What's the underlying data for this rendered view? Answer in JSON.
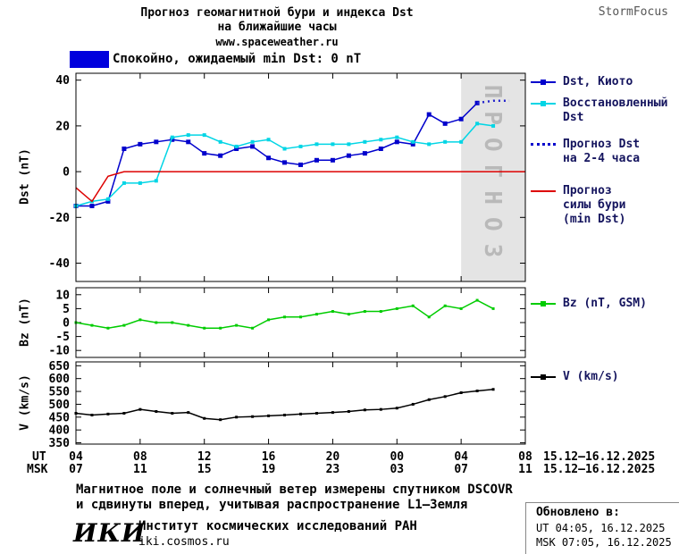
{
  "header": {
    "title_line1": "Прогноз геомагнитной бури и индекса Dst",
    "title_line2": "на ближайшие часы",
    "url": "www.spaceweather.ru",
    "brand": "StormFocus"
  },
  "status_banner": {
    "label": "Спокойно, ожидаемый min Dst: 0 nT",
    "color": "#0000dd"
  },
  "legend": {
    "dst_kyoto": "Dst, Киото",
    "restored_line1": "Восстановленный",
    "restored_line2": "Dst",
    "forecast_line1": "Прогноз Dst",
    "forecast_line2": "на 2-4 часа",
    "storm_line1": "Прогноз",
    "storm_line2": "силы бури",
    "storm_line3": "(min Dst)",
    "bz": "Bz (nT, GSM)",
    "v": "V (km/s)"
  },
  "axes": {
    "dst_label": "Dst (nT)",
    "bz_label": "Bz (nT)",
    "v_label": "V (km/s)",
    "ut_label": "UT",
    "msk_label": "MSK",
    "ut_ticks": [
      "04",
      "08",
      "12",
      "16",
      "20",
      "00",
      "04",
      "08"
    ],
    "msk_ticks": [
      "07",
      "11",
      "15",
      "19",
      "23",
      "03",
      "07",
      "11"
    ],
    "ut_date": "15.12–16.12.2025",
    "msk_date": "15.12–16.12.2025"
  },
  "footer": {
    "note_line1": "Магнитное поле и солнечный ветер измерены спутником DSCOVR",
    "note_line2": "и сдвинуты вперед, учитывая распространение L1–Земля",
    "logo": "ИКИ",
    "institute": "Институт космических исследований РАН",
    "site": "iki.cosmos.ru",
    "updated_label": "Обновлено в:",
    "updated_ut": "UT  04:05, 16.12.2025",
    "updated_msk": "MSK 07:05, 16.12.2025"
  },
  "chart_data": [
    {
      "type": "line",
      "id": "dst",
      "ylabel": "Dst (nT)",
      "ylim": [
        -48,
        43
      ],
      "yticks": [
        -40,
        -20,
        0,
        20,
        40
      ],
      "xlim_hours": [
        4,
        32
      ],
      "forecast_band": {
        "x0": 28,
        "x1": 32,
        "label": "ПРОГНОЗ"
      },
      "series": [
        {
          "name": "Dst, Киото",
          "color": "#0000cc",
          "marker": true,
          "marker_size": 5,
          "width": 1.5,
          "x": [
            4,
            5,
            6,
            7,
            8,
            9,
            10,
            11,
            12,
            13,
            14,
            15,
            16,
            17,
            18,
            19,
            20,
            21,
            22,
            23,
            24,
            25,
            26,
            27,
            28,
            29
          ],
          "y": [
            -15,
            -15,
            -13,
            10,
            12,
            13,
            14,
            13,
            8,
            7,
            10,
            11,
            6,
            4,
            3,
            5,
            5,
            7,
            8,
            10,
            13,
            12,
            25,
            21,
            23,
            30
          ]
        },
        {
          "name": "Восстановленный Dst",
          "color": "#00d5e5",
          "marker": true,
          "marker_size": 4,
          "width": 1.5,
          "x": [
            4,
            5,
            6,
            7,
            8,
            9,
            10,
            11,
            12,
            13,
            14,
            15,
            16,
            17,
            18,
            19,
            20,
            21,
            22,
            23,
            24,
            25,
            26,
            27,
            28,
            29,
            30
          ],
          "y": [
            -15,
            -13,
            -12,
            -5,
            -5,
            -4,
            15,
            16,
            16,
            13,
            11,
            13,
            14,
            10,
            11,
            12,
            12,
            12,
            13,
            14,
            15,
            13,
            12,
            13,
            13,
            21,
            20
          ]
        },
        {
          "name": "Прогноз Dst на 2-4 часа",
          "color": "#2222cc",
          "style": "dotted",
          "width": 2.5,
          "x": [
            29,
            30,
            31
          ],
          "y": [
            30,
            31,
            31
          ]
        },
        {
          "name": "Прогноз силы бури (min Dst)",
          "color": "#dd0000",
          "width": 1.5,
          "x": [
            4,
            5,
            6,
            7,
            32
          ],
          "y": [
            -7,
            -13,
            -2,
            0,
            0
          ]
        }
      ]
    },
    {
      "type": "line",
      "id": "bz",
      "ylabel": "Bz (nT)",
      "ylim": [
        -12.5,
        12.5
      ],
      "yticks": [
        -10,
        -5,
        0,
        5,
        10
      ],
      "xlim_hours": [
        4,
        32
      ],
      "series": [
        {
          "name": "Bz (nT, GSM)",
          "color": "#00cc00",
          "marker": true,
          "marker_size": 3,
          "width": 1.5,
          "x": [
            4,
            5,
            6,
            7,
            8,
            9,
            10,
            11,
            12,
            13,
            14,
            15,
            16,
            17,
            18,
            19,
            20,
            21,
            22,
            23,
            24,
            25,
            26,
            27,
            28,
            29,
            30
          ],
          "y": [
            0,
            -1,
            -2,
            -1,
            1,
            0,
            0,
            -1,
            -2,
            -2,
            -1,
            -2,
            1,
            2,
            2,
            3,
            4,
            3,
            4,
            4,
            5,
            6,
            2,
            6,
            5,
            8,
            5
          ]
        }
      ]
    },
    {
      "type": "line",
      "id": "v",
      "ylabel": "V (km/s)",
      "ylim": [
        345,
        665
      ],
      "yticks": [
        350,
        400,
        450,
        500,
        550,
        600,
        650
      ],
      "xlim_hours": [
        4,
        32
      ],
      "series": [
        {
          "name": "V (km/s)",
          "color": "#000000",
          "marker": true,
          "marker_size": 3,
          "width": 1.5,
          "x": [
            4,
            5,
            6,
            7,
            8,
            9,
            10,
            11,
            12,
            13,
            14,
            15,
            16,
            17,
            18,
            19,
            20,
            21,
            22,
            23,
            24,
            25,
            26,
            27,
            28,
            29,
            30
          ],
          "y": [
            465,
            458,
            462,
            465,
            480,
            472,
            465,
            468,
            445,
            440,
            450,
            452,
            455,
            458,
            462,
            465,
            468,
            472,
            478,
            480,
            485,
            500,
            518,
            530,
            545,
            552,
            558
          ]
        }
      ]
    }
  ]
}
